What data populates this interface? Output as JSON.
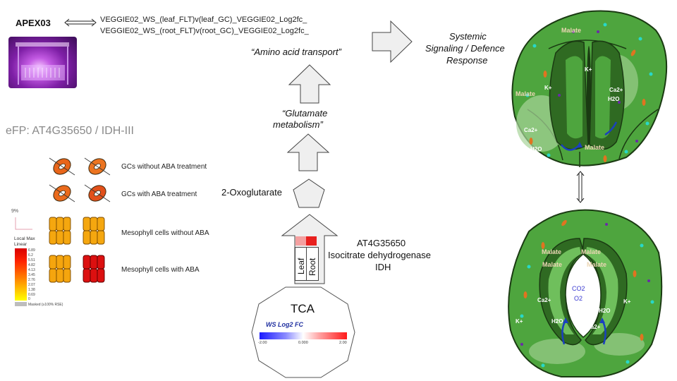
{
  "header": {
    "apex_label": "APEX03",
    "veggie_line_1": "VEGGIE02_WS_(leaf_FLT)v(leaf_GC)_VEGGIE02_Log2fc_",
    "veggie_line_2": "VEGGIE02_WS_(root_FLT)v(root_GC)_VEGGIE02_Log2fc_"
  },
  "efp": {
    "title": "eFP: AT4G35650 / IDH-III",
    "rows": [
      "GCs without ABA treatment",
      "GCs with ABA treatment",
      "Mesophyll cells without ABA",
      "Mesophyll cells with ABA"
    ],
    "legend": {
      "percent": "9%",
      "header_1": "Local Max",
      "header_2": "Linear",
      "ticks": [
        "6.89",
        "6.2",
        "5.51",
        "4.82",
        "4.13",
        "3.45",
        "2.76",
        "2.07",
        "1.38",
        "0.69",
        "0"
      ],
      "masked": "Masked (≥100% RSE)"
    }
  },
  "pathway": {
    "amino_acid": "“Amino acid transport”",
    "glutamate_1": "“Glutamate",
    "glutamate_2": "metabolism”",
    "oxoglutarate": "2-Oxoglutarate",
    "gene_1": "AT4G35650",
    "gene_2": "Isocitrate dehydrogenase",
    "gene_3": "IDH",
    "leaf": "Leaf",
    "root": "Root",
    "leaf_color": "#f4a0a0",
    "root_color": "#e8201e",
    "tca": "TCA",
    "fc_title": "WS Log2 FC",
    "fc_min": "-2.00",
    "fc_mid": "0.000",
    "fc_max": "2.00"
  },
  "signaling": {
    "line_1": "Systemic",
    "line_2": "Signaling / Defence",
    "line_3": "Response"
  },
  "stomata_top": {
    "malate": "Malate",
    "k": "K+",
    "ca": "Ca2+",
    "h2o": "H2O"
  },
  "stomata_bottom": {
    "malate": "Malate",
    "k": "K+",
    "ca": "Ca2+",
    "h2o": "H2O",
    "co2": "CO2",
    "o2": "O2"
  },
  "colors": {
    "cell_green": "#4ea53e",
    "guard_green": "#2f6a22",
    "dark_outline": "#1a3a12",
    "arrow_fill": "#efefef"
  }
}
